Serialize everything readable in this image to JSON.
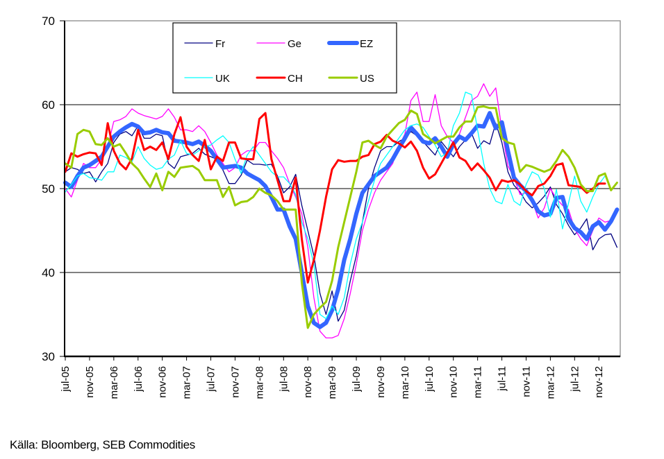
{
  "chart_data": {
    "type": "line",
    "title": "",
    "xlabel": "",
    "ylabel": "",
    "ylim": [
      30,
      70
    ],
    "yticks": [
      30,
      40,
      50,
      60,
      70
    ],
    "grid": "horizontal",
    "legend_position": "top-center",
    "start_month": "jul-05",
    "x_tick_labels": [
      "jul-05",
      "nov-05",
      "mar-06",
      "jul-06",
      "nov-06",
      "mar-07",
      "jul-07",
      "nov-07",
      "mar-08",
      "jul-08",
      "nov-08",
      "mar-09",
      "jul-09",
      "nov-09",
      "mar-10",
      "jul-10",
      "nov-10",
      "mar-11",
      "jul-11",
      "nov-11",
      "mar-12",
      "jul-12",
      "nov-12"
    ],
    "series": [
      {
        "name": "Fr",
        "color": "#000080",
        "width": 1.3,
        "values": [
          52,
          52.5,
          52.3,
          51.8,
          52,
          50.8,
          52,
          53,
          55.5,
          56.5,
          56.8,
          56.3,
          57.5,
          56,
          56,
          56.5,
          56.3,
          53,
          52.4,
          53.8,
          54,
          54.2,
          54.8,
          54.1,
          53.8,
          53.5,
          52.2,
          50.6,
          50.6,
          51.6,
          53.4,
          52.9,
          52.9,
          52.8,
          52.9,
          51.5,
          49.5,
          50.2,
          51.7,
          48,
          45,
          42,
          37.5,
          35,
          37.8,
          34.2,
          35.5,
          39,
          42,
          46,
          50,
          52.5,
          54.5,
          55,
          55,
          55.6,
          56,
          56.8,
          56.3,
          55.6,
          54.8,
          54,
          55.6,
          54.7,
          53.8,
          55,
          55.8,
          56.6,
          54.8,
          55.7,
          55.3,
          57.8,
          55.5,
          52,
          50.4,
          49.6,
          48.4,
          47.7,
          48.3,
          49.1,
          50.2,
          48.1,
          47,
          45.6,
          44.5,
          45.3,
          46.4,
          42.7,
          44,
          44.5,
          44.6,
          43
        ]
      },
      {
        "name": "Ge",
        "color": "#ff00ff",
        "width": 1.3,
        "values": [
          50,
          49,
          51,
          53,
          52.5,
          52.5,
          53.5,
          55,
          58,
          58.2,
          58.6,
          59.5,
          59,
          58.7,
          58.5,
          58.3,
          58.6,
          59.5,
          58.5,
          57,
          57,
          56.8,
          57.5,
          56.8,
          55.5,
          54,
          53,
          52,
          52.5,
          54,
          54.5,
          54.5,
          55.5,
          55.5,
          54.5,
          53.6,
          52.5,
          50.6,
          49,
          47,
          43,
          37,
          33,
          32.2,
          32.2,
          32.5,
          34.5,
          37.5,
          41,
          45,
          47.5,
          49.5,
          51,
          52,
          53,
          55,
          56.5,
          60.5,
          61.5,
          58,
          58,
          61.2,
          57.5,
          56.2,
          55.5,
          56.5,
          58.5,
          60.5,
          61,
          62.5,
          61,
          62,
          57,
          52.7,
          51.3,
          49.3,
          49.5,
          48.5,
          46.5,
          47.7,
          50,
          48.8,
          48,
          47.5,
          45.2,
          44,
          43.2,
          45,
          46.5,
          46,
          46.2,
          47.5
        ]
      },
      {
        "name": "EZ",
        "color": "#3366ff",
        "width": 6,
        "values": [
          50.7,
          50.2,
          51.5,
          52.5,
          52.8,
          53.3,
          53.8,
          55,
          56.2,
          56.8,
          57.3,
          57.7,
          57.4,
          56.6,
          56.7,
          57,
          56.7,
          56.6,
          55.7,
          55.6,
          55.5,
          55.3,
          55.6,
          55.1,
          54.5,
          53.5,
          52.5,
          52.6,
          52.7,
          52.5,
          51.8,
          51.4,
          51,
          50.3,
          49,
          47.5,
          47.5,
          45.5,
          44,
          40,
          36,
          34,
          33.5,
          34,
          35.5,
          38,
          41.5,
          44,
          47,
          49.5,
          50.5,
          51.5,
          52,
          52.5,
          53.5,
          54.8,
          56,
          57.3,
          56.5,
          55.6,
          55.4,
          56,
          55,
          53.8,
          55.3,
          56.2,
          55.8,
          56.6,
          57.5,
          57.4,
          59,
          57.2,
          57.9,
          54.5,
          51.3,
          50.4,
          49.7,
          48.6,
          47.3,
          46.8,
          47,
          48.9,
          49,
          46.4,
          45.3,
          44.8,
          44,
          45.5,
          46,
          45.1,
          46.1,
          47.5
        ]
      },
      {
        "name": "UK",
        "color": "#00ffff",
        "width": 1.3,
        "values": [
          49.6,
          50.5,
          51.5,
          51.8,
          51.3,
          51.2,
          51,
          52,
          52,
          54,
          53.7,
          53.2,
          55,
          53.6,
          52.8,
          52.3,
          52.5,
          53.5,
          54,
          55.7,
          54.2,
          54,
          54.5,
          55,
          55.2,
          55.8,
          56.3,
          55.5,
          53.5,
          51.8,
          54,
          55,
          54,
          53,
          52,
          51.4,
          51.4,
          50.6,
          49.3,
          46,
          44,
          41,
          35,
          34.5,
          36,
          35,
          37,
          41,
          44,
          46,
          48.5,
          51,
          53,
          54,
          55,
          56,
          57,
          57.5,
          57.7,
          57.3,
          56.2,
          55.2,
          53.8,
          54.3,
          57.5,
          59,
          61.5,
          61.2,
          57,
          53,
          50,
          48.5,
          48.2,
          50.5,
          48.5,
          48,
          50.5,
          52,
          51.6,
          50,
          46.6,
          49.9,
          45.2,
          48.3,
          51.5,
          48.5,
          47.2,
          49,
          50.5,
          51.5
        ]
      },
      {
        "name": "CH",
        "color": "#ff0000",
        "width": 3,
        "values": [
          52,
          54.2,
          53.8,
          54.1,
          54.3,
          54.2,
          52.8,
          57.8,
          54.5,
          53,
          52.3,
          53.6,
          57,
          54.6,
          55,
          54.6,
          55.5,
          53.5,
          56.5,
          58.5,
          55,
          54,
          53.3,
          55.8,
          52.3,
          53.8,
          53.3,
          55.5,
          55.5,
          53.6,
          53.5,
          53.5,
          58.3,
          59,
          53.5,
          51,
          48.5,
          48.5,
          51.3,
          44,
          38.8,
          41.5,
          45,
          49,
          52.3,
          53.4,
          53.2,
          53.3,
          53.3,
          53.8,
          54,
          55.3,
          55.6,
          56.4,
          55.7,
          55.4,
          54.9,
          55.6,
          54.5,
          52.5,
          51.2,
          51.7,
          53,
          54.3,
          55.5,
          53.7,
          53.3,
          52.2,
          53,
          52.2,
          51.3,
          49.8,
          51,
          50.8,
          51,
          50.5,
          49.7,
          49.2,
          50.3,
          50.6,
          51.5,
          52.8,
          53,
          50.4,
          50.3,
          50.2,
          49.5,
          50,
          50.6,
          50.6
        ]
      },
      {
        "name": "US",
        "color": "#99cc00",
        "width": 3,
        "values": [
          53,
          52.5,
          56.5,
          57,
          56.8,
          55.3,
          55.2,
          56,
          55,
          55.3,
          54.2,
          53,
          52.3,
          51.2,
          50.2,
          51.8,
          49.8,
          52,
          51.4,
          52.5,
          52.6,
          52.7,
          52.2,
          51,
          51,
          51,
          49,
          50.2,
          48,
          48.4,
          48.5,
          49,
          50,
          49.5,
          49.2,
          48.5,
          47.5,
          47.5,
          47.5,
          38.8,
          33.4,
          35,
          35.8,
          36.5,
          39,
          43,
          46,
          49,
          52,
          55.5,
          55.7,
          55.2,
          54.8,
          56.2,
          57,
          57.8,
          58.2,
          59.3,
          58.9,
          56.5,
          56,
          55.4,
          55.8,
          56.2,
          56.2,
          57.3,
          58,
          58,
          59.7,
          59.8,
          59.6,
          59.6,
          56,
          55.5,
          55.3,
          52,
          52.8,
          52.6,
          52.3,
          52,
          52.3,
          53.3,
          54.6,
          53.8,
          52.5,
          50.5,
          49.7,
          49.7,
          51.5,
          51.8,
          49.8,
          50.7
        ]
      }
    ]
  },
  "source_text": "Källa: Bloomberg, SEB Commodities"
}
